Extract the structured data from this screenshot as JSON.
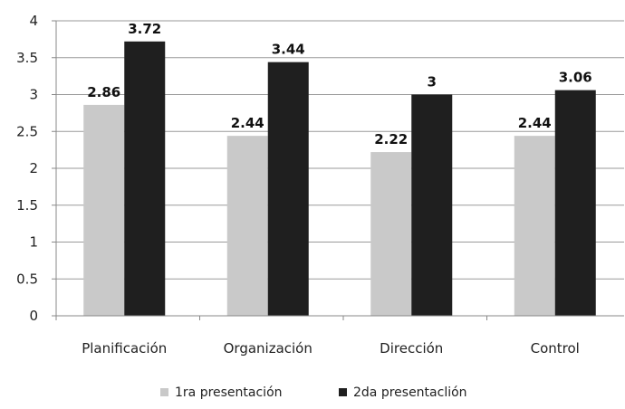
{
  "chart_data": {
    "type": "bar",
    "categories": [
      "Planificación",
      "Organización",
      "Dirección",
      "Control"
    ],
    "series": [
      {
        "name": "1ra presentación",
        "values": [
          2.86,
          2.44,
          2.22,
          2.44
        ],
        "labels": [
          "2.86",
          "2.44",
          "2.22",
          "2.44"
        ],
        "color": "#c9c9c9"
      },
      {
        "name": "2da presentaclión",
        "values": [
          3.72,
          3.44,
          3.0,
          3.06
        ],
        "labels": [
          "3.72",
          "3.44",
          "3",
          "3.06"
        ],
        "color": "#1f1f1f"
      }
    ],
    "y_ticks": [
      "0",
      "0.5",
      "1",
      "1.5",
      "2",
      "2.5",
      "3",
      "3.5",
      "4"
    ],
    "ylim": [
      0,
      4
    ],
    "grid": true,
    "legend_position": "bottom"
  }
}
